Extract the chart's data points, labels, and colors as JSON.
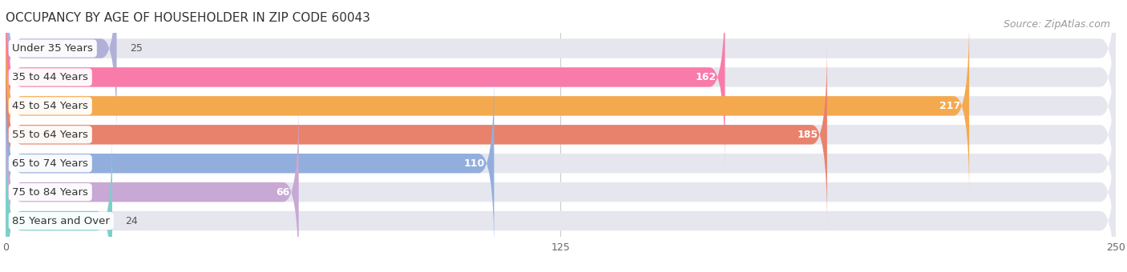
{
  "title": "OCCUPANCY BY AGE OF HOUSEHOLDER IN ZIP CODE 60043",
  "source": "Source: ZipAtlas.com",
  "categories": [
    "Under 35 Years",
    "35 to 44 Years",
    "45 to 54 Years",
    "55 to 64 Years",
    "65 to 74 Years",
    "75 to 84 Years",
    "85 Years and Over"
  ],
  "values": [
    25,
    162,
    217,
    185,
    110,
    66,
    24
  ],
  "bar_colors": [
    "#b0b0d8",
    "#f97baa",
    "#f5a94e",
    "#e8826c",
    "#92aedd",
    "#c8a8d5",
    "#7ecfca"
  ],
  "bar_bg_color": "#e6e6ee",
  "xlim_max": 250,
  "xticks": [
    0,
    125,
    250
  ],
  "title_fontsize": 11,
  "source_fontsize": 9,
  "label_fontsize": 9.5,
  "value_fontsize": 9,
  "bar_height": 0.68,
  "threshold_inside": 50
}
